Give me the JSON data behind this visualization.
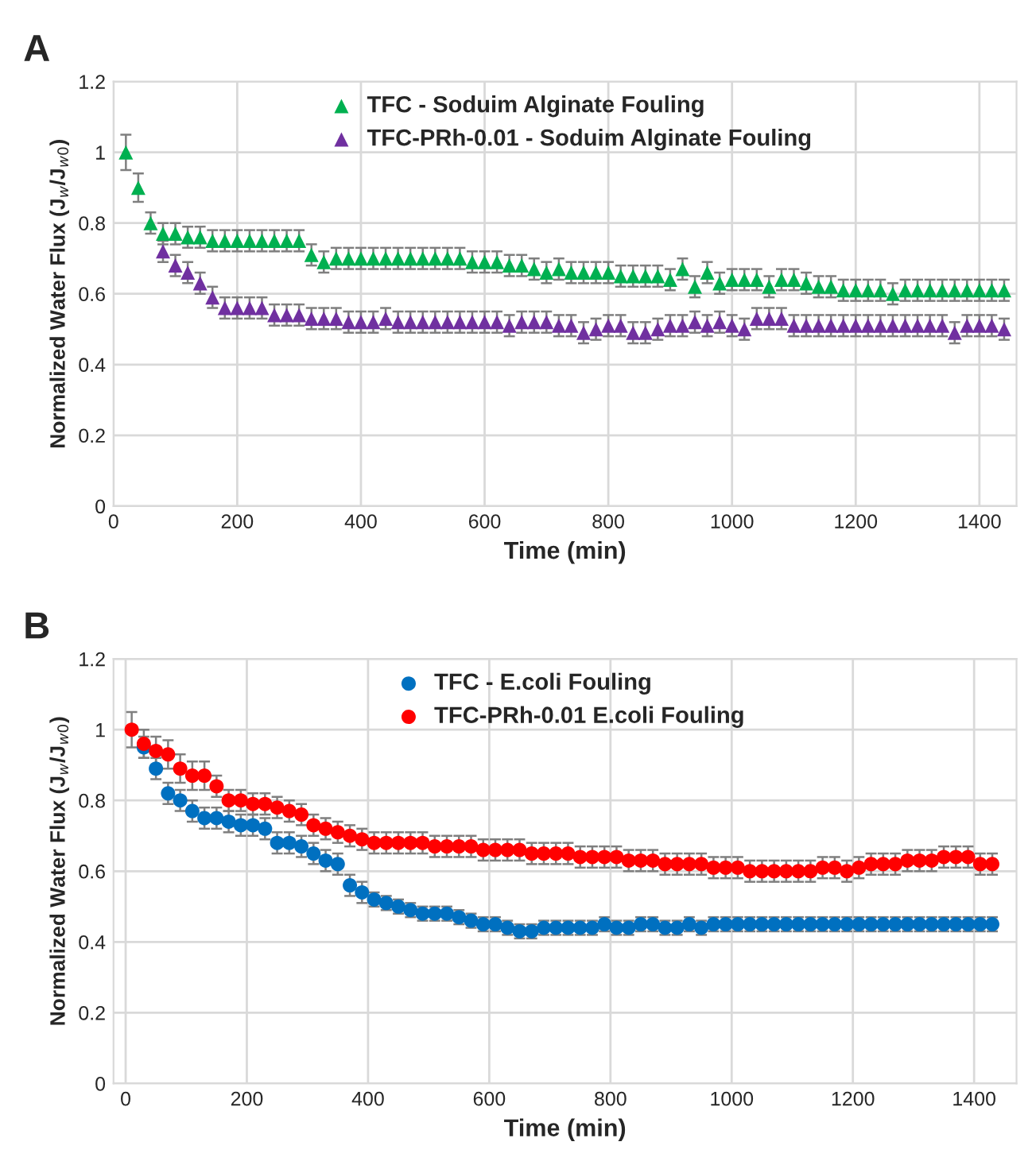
{
  "chart_data": [
    {
      "type": "scatter",
      "annotations": [
        "A"
      ],
      "xlabel": "Time (min)",
      "ylabel": "Normalized Water Flux (J$_{w}$/J$_{w0}$)",
      "x": [
        20,
        40,
        60,
        80,
        100,
        120,
        140,
        160,
        180,
        200,
        220,
        240,
        260,
        280,
        300,
        320,
        340,
        360,
        380,
        400,
        420,
        440,
        460,
        480,
        500,
        520,
        540,
        560,
        580,
        600,
        620,
        640,
        660,
        680,
        700,
        720,
        740,
        760,
        780,
        800,
        820,
        840,
        860,
        880,
        900,
        920,
        940,
        960,
        980,
        1000,
        1020,
        1040,
        1060,
        1080,
        1100,
        1120,
        1140,
        1160,
        1180,
        1200,
        1220,
        1240,
        1260,
        1280,
        1300,
        1320,
        1340,
        1360,
        1380,
        1400,
        1420,
        1440
      ],
      "xlim": [
        0,
        1460
      ],
      "xticks": [
        0,
        200,
        400,
        600,
        800,
        1000,
        1200,
        1400
      ],
      "ylim": [
        0,
        1.2
      ],
      "yticks": [
        0,
        0.2,
        0.4,
        0.6,
        0.8,
        1,
        1.2
      ],
      "grid": true,
      "legend": "top",
      "marker": "triangle",
      "series": [
        {
          "name": "TFC - Soduim Alginate Fouling",
          "color": "#00b050",
          "values": [
            1.0,
            0.9,
            0.8,
            0.77,
            0.77,
            0.76,
            0.76,
            0.75,
            0.75,
            0.75,
            0.75,
            0.75,
            0.75,
            0.75,
            0.75,
            0.71,
            0.69,
            0.7,
            0.7,
            0.7,
            0.7,
            0.7,
            0.7,
            0.7,
            0.7,
            0.7,
            0.7,
            0.7,
            0.69,
            0.69,
            0.69,
            0.68,
            0.68,
            0.67,
            0.66,
            0.67,
            0.66,
            0.66,
            0.66,
            0.66,
            0.65,
            0.65,
            0.65,
            0.65,
            0.64,
            0.67,
            0.62,
            0.66,
            0.63,
            0.64,
            0.64,
            0.64,
            0.62,
            0.64,
            0.64,
            0.63,
            0.62,
            0.62,
            0.61,
            0.61,
            0.61,
            0.61,
            0.6,
            0.61,
            0.61,
            0.61,
            0.61,
            0.61,
            0.61,
            0.61,
            0.61,
            0.61
          ],
          "errors": [
            0.05,
            0.04,
            0.03,
            0.03,
            0.03,
            0.03,
            0.03,
            0.03,
            0.03,
            0.03,
            0.03,
            0.03,
            0.03,
            0.03,
            0.03,
            0.03,
            0.03,
            0.03,
            0.03,
            0.03,
            0.03,
            0.03,
            0.03,
            0.03,
            0.03,
            0.03,
            0.03,
            0.03,
            0.03,
            0.03,
            0.03,
            0.03,
            0.03,
            0.03,
            0.03,
            0.03,
            0.03,
            0.03,
            0.03,
            0.03,
            0.03,
            0.03,
            0.03,
            0.03,
            0.03,
            0.03,
            0.03,
            0.03,
            0.03,
            0.03,
            0.03,
            0.03,
            0.03,
            0.03,
            0.03,
            0.03,
            0.03,
            0.03,
            0.03,
            0.03,
            0.03,
            0.03,
            0.03,
            0.03,
            0.03,
            0.03,
            0.03,
            0.03,
            0.03,
            0.03,
            0.03,
            0.03
          ]
        },
        {
          "name": "TFC-PRh-0.01 - Soduim Alginate Fouling",
          "color": "#7030a0",
          "values": [
            null,
            null,
            null,
            0.72,
            0.68,
            0.66,
            0.63,
            0.59,
            0.56,
            0.56,
            0.56,
            0.56,
            0.54,
            0.54,
            0.54,
            0.53,
            0.53,
            0.53,
            0.52,
            0.52,
            0.52,
            0.53,
            0.52,
            0.52,
            0.52,
            0.52,
            0.52,
            0.52,
            0.52,
            0.52,
            0.52,
            0.51,
            0.52,
            0.52,
            0.52,
            0.51,
            0.51,
            0.49,
            0.5,
            0.51,
            0.51,
            0.49,
            0.49,
            0.5,
            0.51,
            0.51,
            0.52,
            0.51,
            0.52,
            0.51,
            0.5,
            0.53,
            0.53,
            0.53,
            0.51,
            0.51,
            0.51,
            0.51,
            0.51,
            0.51,
            0.51,
            0.51,
            0.51,
            0.51,
            0.51,
            0.51,
            0.51,
            0.49,
            0.51,
            0.51,
            0.51,
            0.5
          ],
          "errors": [
            null,
            null,
            null,
            0.03,
            0.03,
            0.03,
            0.03,
            0.03,
            0.03,
            0.03,
            0.03,
            0.03,
            0.03,
            0.03,
            0.03,
            0.03,
            0.03,
            0.03,
            0.03,
            0.03,
            0.03,
            0.03,
            0.03,
            0.03,
            0.03,
            0.03,
            0.03,
            0.03,
            0.03,
            0.03,
            0.03,
            0.03,
            0.03,
            0.03,
            0.03,
            0.03,
            0.03,
            0.03,
            0.03,
            0.03,
            0.03,
            0.03,
            0.03,
            0.03,
            0.03,
            0.03,
            0.03,
            0.03,
            0.03,
            0.03,
            0.03,
            0.03,
            0.03,
            0.03,
            0.03,
            0.03,
            0.03,
            0.03,
            0.03,
            0.03,
            0.03,
            0.03,
            0.03,
            0.03,
            0.03,
            0.03,
            0.03,
            0.03,
            0.03,
            0.03,
            0.03,
            0.03
          ]
        }
      ]
    },
    {
      "type": "scatter",
      "annotations": [
        "B"
      ],
      "xlabel": "Time (min)",
      "ylabel": "Normalized Water Flux (J$_{w}$/J$_{w0}$)",
      "x": [
        10,
        30,
        50,
        70,
        90,
        110,
        130,
        150,
        170,
        190,
        210,
        230,
        250,
        270,
        290,
        310,
        330,
        350,
        370,
        390,
        410,
        430,
        450,
        470,
        490,
        510,
        530,
        550,
        570,
        590,
        610,
        630,
        650,
        670,
        690,
        710,
        730,
        750,
        770,
        790,
        810,
        830,
        850,
        870,
        890,
        910,
        930,
        950,
        970,
        990,
        1010,
        1030,
        1050,
        1070,
        1090,
        1110,
        1130,
        1150,
        1170,
        1190,
        1210,
        1230,
        1250,
        1270,
        1290,
        1310,
        1330,
        1350,
        1370,
        1390,
        1410,
        1430
      ],
      "xlim": [
        -20,
        1470
      ],
      "xticks": [
        0,
        200,
        400,
        600,
        800,
        1000,
        1200,
        1400
      ],
      "ylim": [
        0,
        1.2
      ],
      "yticks": [
        0,
        0.2,
        0.4,
        0.6,
        0.8,
        1,
        1.2
      ],
      "grid": true,
      "legend": "top",
      "marker": "circle",
      "series": [
        {
          "name": "TFC - E.coli Fouling",
          "color": "#0070c0",
          "values": [
            null,
            0.95,
            0.89,
            0.82,
            0.8,
            0.77,
            0.75,
            0.75,
            0.74,
            0.73,
            0.73,
            0.72,
            0.68,
            0.68,
            0.67,
            0.65,
            0.63,
            0.62,
            0.56,
            0.54,
            0.52,
            0.51,
            0.5,
            0.49,
            0.48,
            0.48,
            0.48,
            0.47,
            0.46,
            0.45,
            0.45,
            0.44,
            0.43,
            0.43,
            0.44,
            0.44,
            0.44,
            0.44,
            0.44,
            0.45,
            0.44,
            0.44,
            0.45,
            0.45,
            0.44,
            0.44,
            0.45,
            0.44,
            0.45,
            0.45,
            0.45,
            0.45,
            0.45,
            0.45,
            0.45,
            0.45,
            0.45,
            0.45,
            0.45,
            0.45,
            0.45,
            0.45,
            0.45,
            0.45,
            0.45,
            0.45,
            0.45,
            0.45,
            0.45,
            0.45,
            0.45,
            0.45
          ],
          "errors": [
            null,
            0.03,
            0.03,
            0.03,
            0.03,
            0.03,
            0.03,
            0.03,
            0.03,
            0.03,
            0.03,
            0.03,
            0.03,
            0.03,
            0.03,
            0.03,
            0.03,
            0.03,
            0.03,
            0.03,
            0.02,
            0.02,
            0.02,
            0.02,
            0.02,
            0.02,
            0.02,
            0.02,
            0.02,
            0.02,
            0.02,
            0.02,
            0.02,
            0.02,
            0.02,
            0.02,
            0.02,
            0.02,
            0.02,
            0.02,
            0.02,
            0.02,
            0.02,
            0.02,
            0.02,
            0.02,
            0.02,
            0.02,
            0.02,
            0.02,
            0.02,
            0.02,
            0.02,
            0.02,
            0.02,
            0.02,
            0.02,
            0.02,
            0.02,
            0.02,
            0.02,
            0.02,
            0.02,
            0.02,
            0.02,
            0.02,
            0.02,
            0.02,
            0.02,
            0.02,
            0.02,
            0.02
          ]
        },
        {
          "name": "TFC-PRh-0.01 E.coli Fouling",
          "color": "#ff0000",
          "values": [
            1.0,
            0.96,
            0.94,
            0.93,
            0.89,
            0.87,
            0.87,
            0.84,
            0.8,
            0.8,
            0.79,
            0.79,
            0.78,
            0.77,
            0.76,
            0.73,
            0.72,
            0.71,
            0.7,
            0.69,
            0.68,
            0.68,
            0.68,
            0.68,
            0.68,
            0.67,
            0.67,
            0.67,
            0.67,
            0.66,
            0.66,
            0.66,
            0.66,
            0.65,
            0.65,
            0.65,
            0.65,
            0.64,
            0.64,
            0.64,
            0.64,
            0.63,
            0.63,
            0.63,
            0.62,
            0.62,
            0.62,
            0.62,
            0.61,
            0.61,
            0.61,
            0.6,
            0.6,
            0.6,
            0.6,
            0.6,
            0.6,
            0.61,
            0.61,
            0.6,
            0.61,
            0.62,
            0.62,
            0.62,
            0.63,
            0.63,
            0.63,
            0.64,
            0.64,
            0.64,
            0.62,
            0.62
          ],
          "errors": [
            0.05,
            0.04,
            0.04,
            0.04,
            0.04,
            0.04,
            0.04,
            0.03,
            0.03,
            0.03,
            0.03,
            0.03,
            0.03,
            0.03,
            0.03,
            0.03,
            0.03,
            0.03,
            0.03,
            0.03,
            0.03,
            0.03,
            0.03,
            0.03,
            0.03,
            0.03,
            0.03,
            0.03,
            0.03,
            0.03,
            0.03,
            0.03,
            0.03,
            0.03,
            0.03,
            0.03,
            0.03,
            0.03,
            0.03,
            0.03,
            0.03,
            0.03,
            0.03,
            0.03,
            0.03,
            0.03,
            0.03,
            0.03,
            0.03,
            0.03,
            0.03,
            0.03,
            0.03,
            0.03,
            0.03,
            0.03,
            0.03,
            0.03,
            0.03,
            0.03,
            0.03,
            0.03,
            0.03,
            0.03,
            0.03,
            0.03,
            0.03,
            0.03,
            0.03,
            0.03,
            0.03,
            0.03
          ]
        }
      ]
    }
  ]
}
